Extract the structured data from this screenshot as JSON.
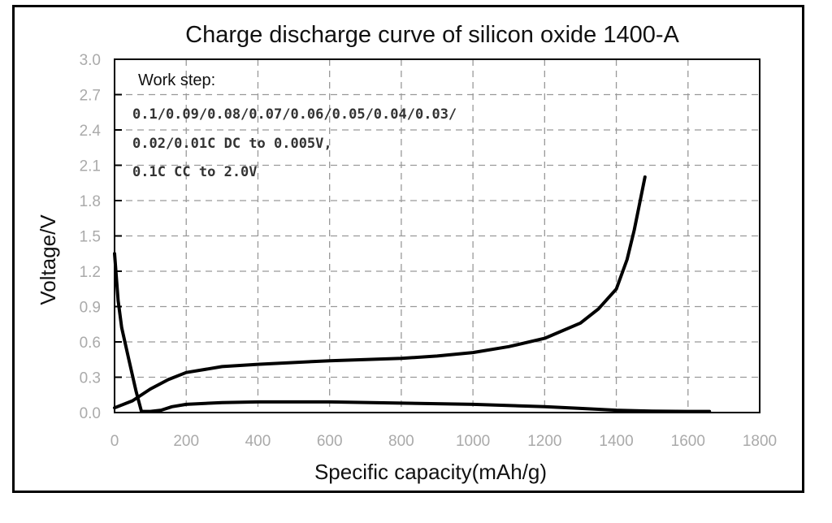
{
  "chart_data": {
    "type": "line",
    "title": "Charge discharge curve of silicon oxide 1400-A",
    "xlabel": "Specific capacity(mAh/g)",
    "ylabel": "Voltage/V",
    "xlim": [
      0,
      1800
    ],
    "ylim": [
      0,
      3.0
    ],
    "xticks": [
      "0",
      "200",
      "400",
      "600",
      "800",
      "1000",
      "1200",
      "1400",
      "1600",
      "1800"
    ],
    "yticks": [
      "0.0",
      "0.3",
      "0.6",
      "0.9",
      "1.2",
      "1.5",
      "1.8",
      "2.1",
      "2.4",
      "2.7",
      "3.0"
    ],
    "grid": true,
    "line_color": "#000000",
    "annotation": {
      "heading": "Work step:",
      "lines": [
        "0.1/0.09/0.08/0.07/0.06/0.05/0.04/0.03/",
        "0.02/0.01C DC to 0.005V,",
        "0.1C CC to 2.0V"
      ]
    },
    "series": [
      {
        "x": [
          0,
          10,
          20,
          40,
          60,
          75,
          100,
          130,
          160,
          200,
          300,
          400,
          600,
          800,
          1000,
          1200,
          1300,
          1400,
          1500,
          1600,
          1660
        ],
        "y": [
          1.35,
          0.95,
          0.72,
          0.45,
          0.18,
          0.01,
          0.01,
          0.02,
          0.05,
          0.07,
          0.085,
          0.09,
          0.09,
          0.08,
          0.07,
          0.05,
          0.035,
          0.02,
          0.012,
          0.01,
          0.01
        ]
      },
      {
        "x": [
          0,
          50,
          100,
          150,
          200,
          300,
          400,
          600,
          800,
          900,
          1000,
          1100,
          1200,
          1300,
          1350,
          1400,
          1430,
          1450,
          1470,
          1480
        ],
        "y": [
          0.04,
          0.1,
          0.2,
          0.28,
          0.34,
          0.39,
          0.41,
          0.44,
          0.46,
          0.48,
          0.51,
          0.56,
          0.63,
          0.76,
          0.88,
          1.05,
          1.3,
          1.55,
          1.85,
          2.0
        ]
      }
    ]
  }
}
